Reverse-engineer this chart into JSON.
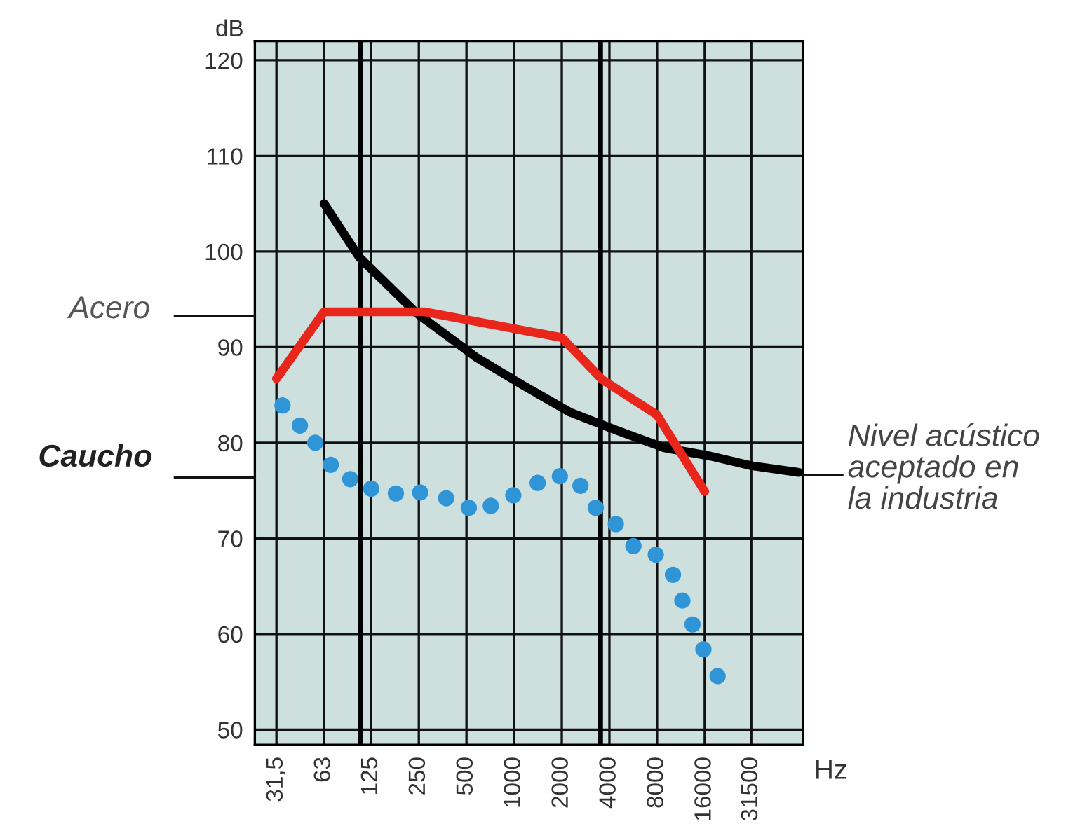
{
  "chart_data": {
    "type": "line",
    "xlabel": "Hz",
    "ylabel": "dB",
    "xlim": [
      23,
      67000
    ],
    "ylim": [
      48.4,
      122
    ],
    "log": "x",
    "xticks": [
      {
        "value": 31.5,
        "label": "31,5"
      },
      63,
      125,
      250,
      500,
      1000,
      2000,
      4000,
      8000,
      16000,
      31500
    ],
    "yticks": [
      50,
      60,
      70,
      80,
      90,
      100,
      110,
      120
    ],
    "grid": true,
    "legend": false,
    "series": [
      {
        "color": "#000000",
        "x": [
          63,
          105,
          240,
          580,
          1140,
          2250,
          4440,
          8770,
          17400,
          31500,
          63000
        ],
        "values": [
          105.0,
          99.4,
          93.6,
          88.9,
          86.0,
          83.2,
          81.3,
          79.5,
          78.6,
          77.6,
          76.9
        ]
      },
      {
        "color": "#e8261c",
        "x": [
          31.5,
          63,
          270,
          2000,
          3600,
          8000,
          16000
        ],
        "values": [
          86.7,
          93.7,
          93.7,
          91.0,
          86.6,
          82.9,
          74.9
        ]
      },
      {
        "type": "scatter",
        "color": "#2f95d6",
        "marker": "circle",
        "x": [
          34.4,
          44.3,
          55.4,
          69.4,
          92.2,
          125,
          179,
          255,
          372,
          517,
          712,
          988,
          1408,
          1946,
          2625,
          3280,
          4390,
          5670,
          7850,
          10080,
          11560,
          13400,
          15700,
          19300
        ],
        "values": [
          83.9,
          81.8,
          80.0,
          77.7,
          76.2,
          75.2,
          74.7,
          74.8,
          74.2,
          73.2,
          73.4,
          74.5,
          75.8,
          76.5,
          75.5,
          73.2,
          71.5,
          69.2,
          68.3,
          66.2,
          63.5,
          61.0,
          58.4,
          55.6
        ]
      }
    ],
    "ref_lines": [
      {
        "axis": "x",
        "value": 107,
        "color": "#000000"
      },
      {
        "axis": "x",
        "value": 3510,
        "color": "#000000"
      }
    ],
    "annotations": [
      "Acero",
      "Caucho",
      "Nivel acústico\naceptado en\nla industria"
    ]
  }
}
